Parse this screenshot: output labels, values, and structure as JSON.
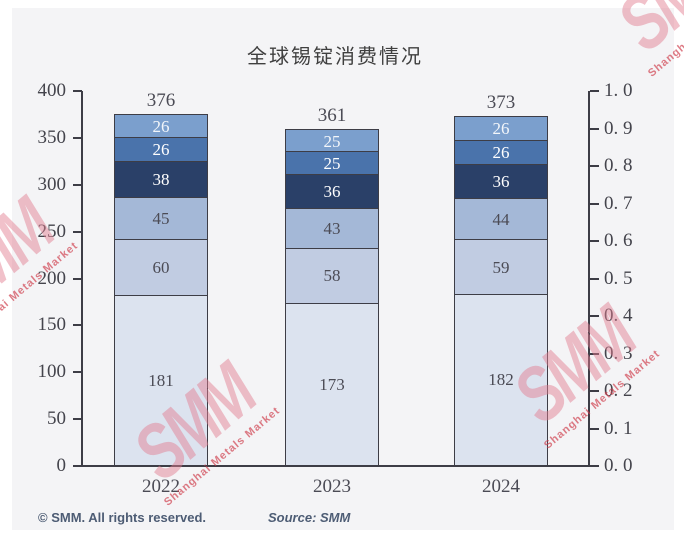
{
  "title": "全球锡锭消费情况",
  "chart_data": {
    "type": "bar",
    "stacked": true,
    "title": "全球锡锭消费情况",
    "categories": [
      "2022",
      "2023",
      "2024"
    ],
    "series": [
      {
        "name": "segment-1-bottom",
        "color": "#dce3ef",
        "text_color": "#4b4b55",
        "values": [
          181,
          173,
          182
        ]
      },
      {
        "name": "segment-2",
        "color": "#c1cce2",
        "text_color": "#4b4b55",
        "values": [
          60,
          58,
          59
        ]
      },
      {
        "name": "segment-3",
        "color": "#a4b8d7",
        "text_color": "#4b4b55",
        "values": [
          45,
          43,
          44
        ]
      },
      {
        "name": "segment-4",
        "color": "#2a4068",
        "text_color": "#ffffff",
        "values": [
          38,
          36,
          36
        ]
      },
      {
        "name": "segment-5",
        "color": "#4a73ab",
        "text_color": "#ffffff",
        "values": [
          26,
          25,
          26
        ]
      },
      {
        "name": "segment-6-top",
        "color": "#7b9fcd",
        "text_color": "#f3f6fa",
        "values": [
          26,
          25,
          26
        ]
      }
    ],
    "totals": [
      376,
      361,
      373
    ],
    "left_axis": {
      "min": 0,
      "max": 400,
      "tick_labels": [
        "400",
        "350",
        "300",
        "250",
        "200",
        "150",
        "100",
        "50",
        "0"
      ]
    },
    "right_axis": {
      "min": 0.0,
      "max": 1.0,
      "tick_labels": [
        "1. 0",
        "0. 9",
        "0. 8",
        "0. 7",
        "0. 6",
        "0. 5",
        "0. 4",
        "0. 3",
        "0. 2",
        "0. 1",
        "0. 0"
      ]
    },
    "legend": "none",
    "grid": false
  },
  "watermark": {
    "logo": "SMM",
    "subtext": "Shanghai Metals Market"
  },
  "footer": {
    "copyright": "© SMM. All rights reserved.",
    "source": "Source: SMM"
  },
  "colors": {
    "background": "#f4f4f6",
    "axis": "#3d3d46",
    "bar_border": "#3d3d46",
    "label": "#4b4b55",
    "footer_text": "#4d5c74",
    "watermark_pink": "#e27d91",
    "watermark_red": "#ce3c4b"
  }
}
